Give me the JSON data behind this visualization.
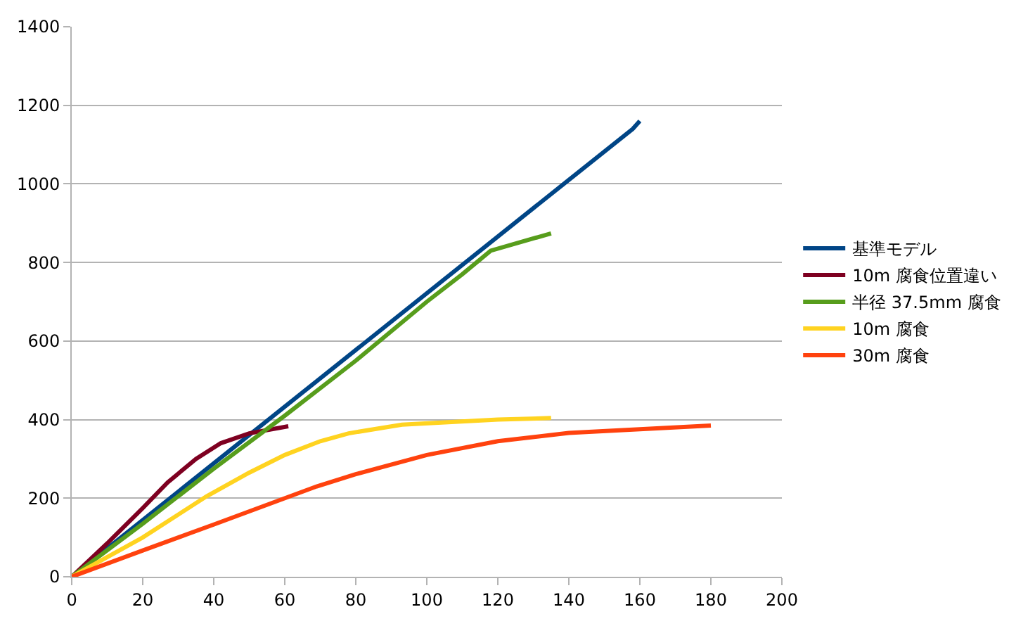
{
  "chart_data": {
    "type": "line",
    "xlim": [
      0,
      200
    ],
    "xticks": [
      0,
      20,
      40,
      60,
      80,
      100,
      120,
      140,
      160,
      180,
      200
    ],
    "ylim": [
      0,
      1400
    ],
    "yticks": [
      0,
      200,
      400,
      600,
      800,
      1000,
      1200,
      1400
    ],
    "grid": "y",
    "legend": "right",
    "series": [
      {
        "name": "基準モデル",
        "color": "#004586",
        "x": [
          0,
          158,
          160
        ],
        "values": [
          0,
          1140,
          1160
        ]
      },
      {
        "name": "10m 腐食位置違い",
        "color": "#7e0021",
        "x": [
          0,
          10,
          20,
          27,
          35,
          42,
          50,
          61
        ],
        "values": [
          0,
          85,
          175,
          240,
          300,
          340,
          365,
          383
        ]
      },
      {
        "name": "半径 37.5mm 腐食",
        "color": "#579d1c",
        "x": [
          0,
          20,
          40,
          60,
          80,
          100,
          110,
          118,
          135
        ],
        "values": [
          0,
          135,
          275,
          410,
          550,
          700,
          770,
          830,
          874
        ]
      },
      {
        "name": "10m 腐食",
        "color": "#ffd320",
        "x": [
          0,
          20,
          38,
          50,
          60,
          70,
          78,
          93,
          120,
          135
        ],
        "values": [
          0,
          100,
          205,
          265,
          310,
          345,
          365,
          387,
          400,
          404
        ]
      },
      {
        "name": "30m 腐食",
        "color": "#ff420e",
        "x": [
          0,
          20,
          40,
          69,
          80,
          100,
          120,
          140,
          180
        ],
        "values": [
          0,
          67,
          133,
          230,
          261,
          310,
          345,
          366,
          385
        ]
      }
    ]
  }
}
